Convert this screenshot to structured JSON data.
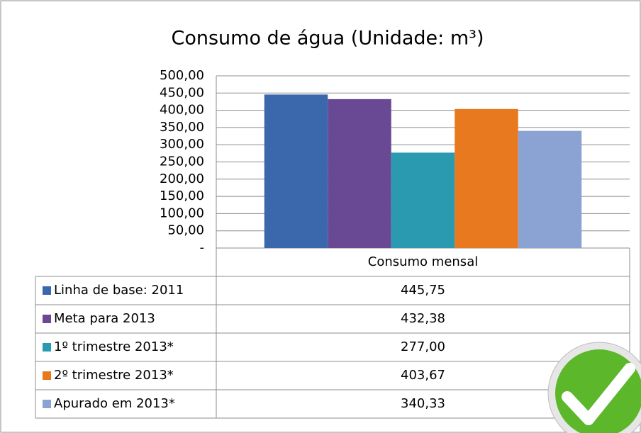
{
  "chart_data": {
    "type": "bar",
    "title": "Consumo de água (Unidade: m³)",
    "categories": [
      "Consumo mensal"
    ],
    "series": [
      {
        "name": "Linha de base: 2011",
        "color": "#3b68ad",
        "values": [
          445.75
        ],
        "value_labels": [
          "445,75"
        ]
      },
      {
        "name": "Meta para 2013",
        "color": "#6a4994",
        "values": [
          432.38
        ],
        "value_labels": [
          "432,38"
        ]
      },
      {
        "name": "1º trimestre 2013*",
        "color": "#2a9ab0",
        "values": [
          277.0
        ],
        "value_labels": [
          "277,00"
        ]
      },
      {
        "name": "2º trimestre 2013*",
        "color": "#e8791e",
        "values": [
          403.67
        ],
        "value_labels": [
          "403,67"
        ]
      },
      {
        "name": "Apurado em 2013*",
        "color": "#8aa3d2",
        "values": [
          340.33
        ],
        "value_labels": [
          "340,33"
        ]
      }
    ],
    "ylim": [
      0,
      500
    ],
    "yticks": [
      {
        "value": 0,
        "label": "-"
      },
      {
        "value": 50,
        "label": "50,00"
      },
      {
        "value": 100,
        "label": "100,00"
      },
      {
        "value": 150,
        "label": "150,00"
      },
      {
        "value": 200,
        "label": "200,00"
      },
      {
        "value": 250,
        "label": "250,00"
      },
      {
        "value": 300,
        "label": "300,00"
      },
      {
        "value": 350,
        "label": "350,00"
      },
      {
        "value": 400,
        "label": "400,00"
      },
      {
        "value": 450,
        "label": "450,00"
      },
      {
        "value": 500,
        "label": "500,00"
      }
    ],
    "grid": true
  }
}
